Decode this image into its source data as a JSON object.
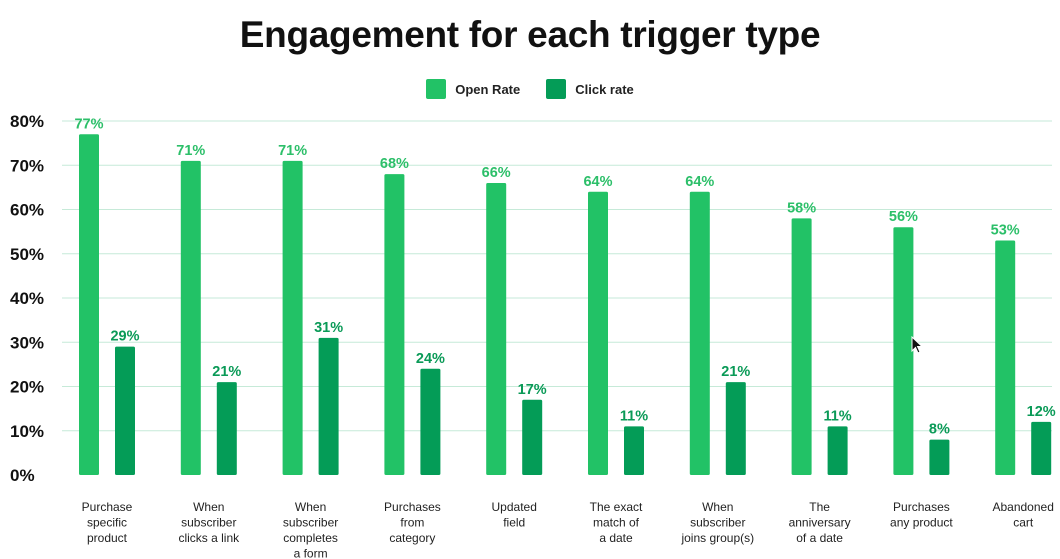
{
  "colors": {
    "open": "#22c266",
    "click": "#049c57",
    "grid": "#c6ead8",
    "text": "#111111",
    "label_open": "#2cbf69",
    "label_click": "#0a9a57"
  },
  "chart_data": {
    "type": "bar",
    "title": "Engagement for each trigger type",
    "xlabel": "",
    "ylabel": "",
    "ylim": [
      0,
      80
    ],
    "yticks": [
      "0%",
      "10%",
      "20%",
      "30%",
      "40%",
      "50%",
      "60%",
      "70%",
      "80%"
    ],
    "legend": [
      "Open Rate",
      "Click rate"
    ],
    "legend_position": "top-center",
    "grid": true,
    "categories": [
      [
        "Purchase",
        "specific",
        "product"
      ],
      [
        "When",
        "subscriber",
        "clicks a link"
      ],
      [
        "When",
        "subscriber",
        "completes",
        "a form"
      ],
      [
        "Purchases",
        "from",
        "category"
      ],
      [
        "Updated",
        "field"
      ],
      [
        "The exact",
        "match of",
        "a date"
      ],
      [
        "When",
        "subscriber",
        "joins group(s)"
      ],
      [
        "The",
        "anniversary",
        "of a date"
      ],
      [
        "Purchases",
        "any product"
      ],
      [
        "Abandoned",
        "cart"
      ]
    ],
    "series": [
      {
        "name": "Open Rate",
        "values": [
          77,
          71,
          71,
          68,
          66,
          64,
          64,
          58,
          56,
          53
        ],
        "labels": [
          "77%",
          "71%",
          "71%",
          "68%",
          "66%",
          "64%",
          "64%",
          "58%",
          "56%",
          "53%"
        ]
      },
      {
        "name": "Click rate",
        "values": [
          29,
          21,
          31,
          24,
          17,
          11,
          21,
          11,
          8,
          12
        ],
        "labels": [
          "29%",
          "21%",
          "31%",
          "24%",
          "17%",
          "11%",
          "21%",
          "11%",
          "8%",
          "12%"
        ]
      }
    ]
  }
}
